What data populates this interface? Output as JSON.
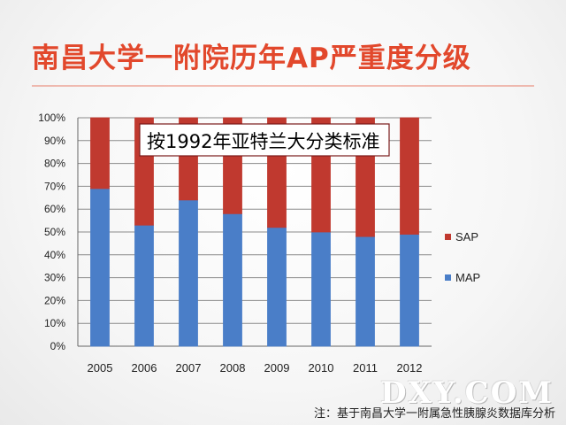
{
  "slide": {
    "title": "南昌大学一附院历年AP严重度分级",
    "note": "注：基于南昌大学一附属急性胰腺炎数据库分析",
    "watermark": "DXY.COM"
  },
  "chart_data": {
    "type": "bar",
    "stacked": true,
    "categories": [
      "2005",
      "2006",
      "2007",
      "2008",
      "2009",
      "2010",
      "2011",
      "2012"
    ],
    "series": [
      {
        "name": "MAP",
        "color": "#4a7ec8",
        "values": [
          69,
          53,
          64,
          58,
          52,
          50,
          48,
          49
        ]
      },
      {
        "name": "SAP",
        "color": "#c0392f",
        "values": [
          31,
          47,
          36,
          42,
          48,
          50,
          52,
          51
        ]
      }
    ],
    "ylim": [
      0,
      100
    ],
    "yticks": [
      "0%",
      "10%",
      "20%",
      "30%",
      "40%",
      "50%",
      "60%",
      "70%",
      "80%",
      "90%",
      "100%"
    ],
    "grid": true,
    "legend": "right",
    "annotation": "按1992年亚特兰大分类标准"
  }
}
